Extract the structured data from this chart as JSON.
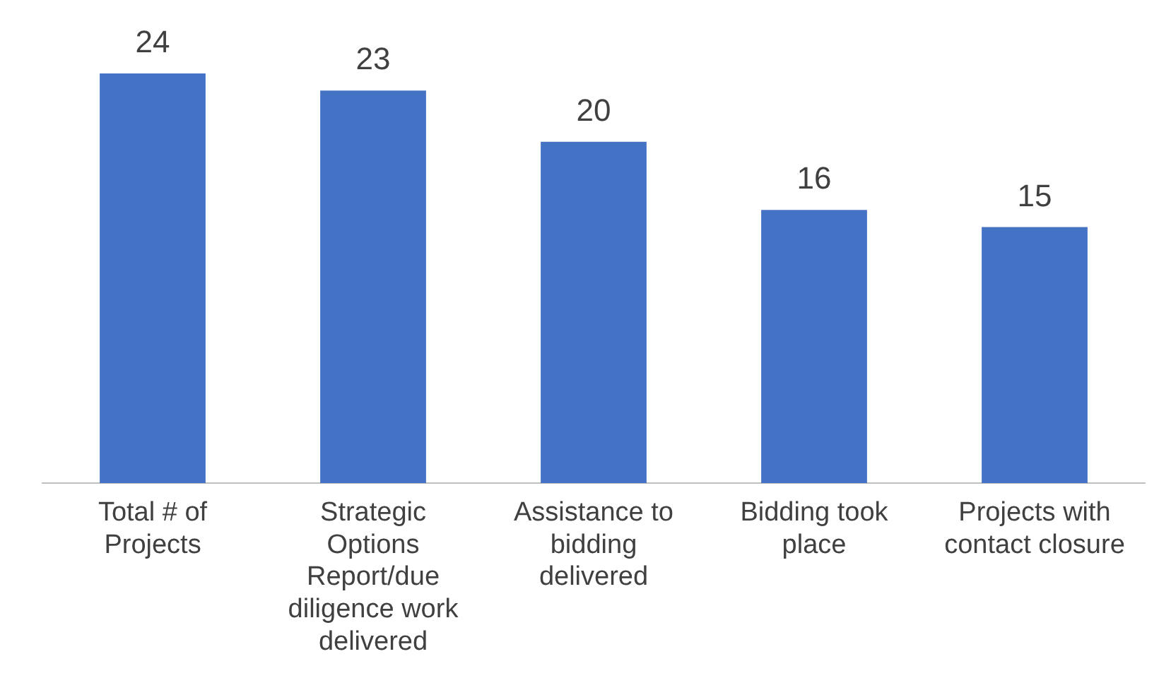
{
  "chart_data": {
    "type": "bar",
    "categories": [
      "Total # of Projects",
      "Strategic Options Report/due diligence work delivered",
      "Assistance to bidding delivered",
      "Bidding took place",
      "Projects with contact closure"
    ],
    "values": [
      24,
      23,
      20,
      16,
      15
    ],
    "color": "#4472c4",
    "data_labels": true,
    "grid": false,
    "legend": false
  }
}
